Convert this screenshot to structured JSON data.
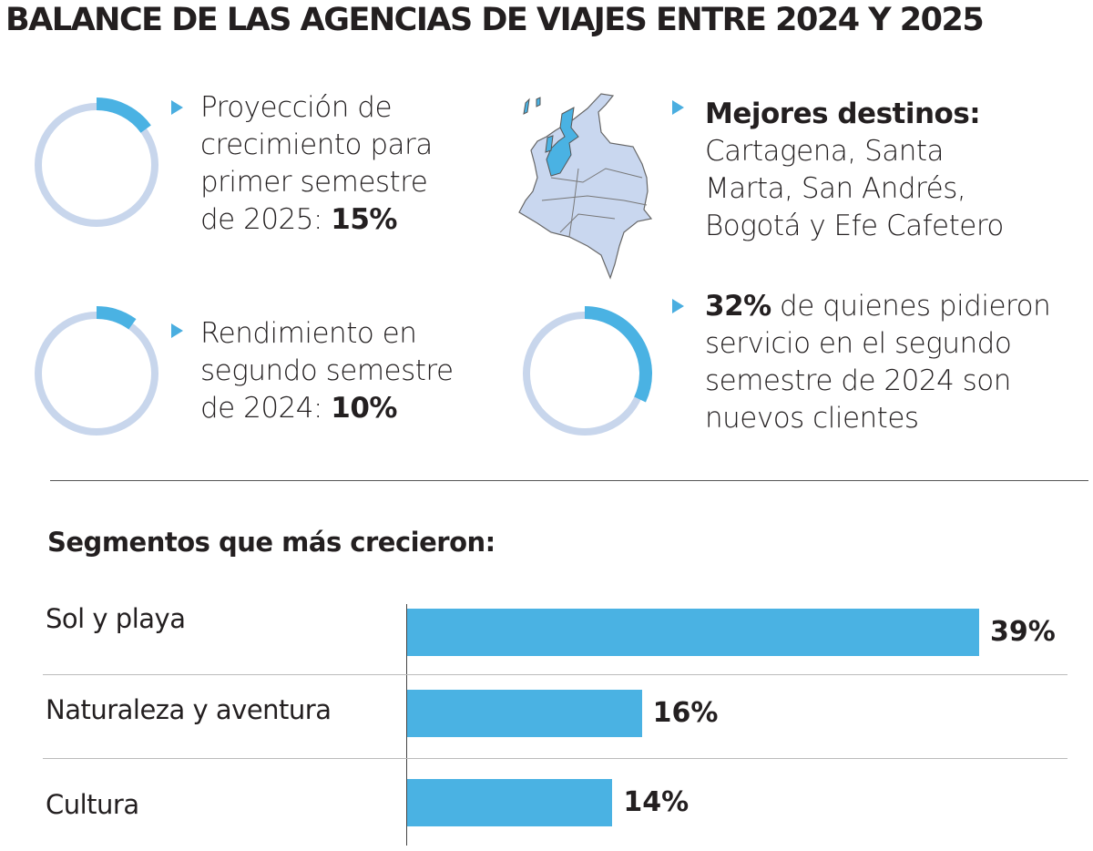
{
  "title": "BALANCE DE LAS AGENCIAS DE VIAJES ENTRE 2024 Y 2025",
  "colors": {
    "accent": "#4ab2e3",
    "ring": "#c8d6ec",
    "map_fill": "#c9d7ef"
  },
  "stats": [
    {
      "lines": [
        "Proyección de",
        "crecimiento para",
        "primer semestre",
        "de 2025: "
      ],
      "value_label": "15%",
      "value": 15
    },
    {
      "lines": [
        "Rendimiento en",
        "segundo semestre",
        "de 2024: "
      ],
      "value_label": "10%",
      "value": 10
    },
    {
      "bold": "Mejores destinos:",
      "lines": [
        "Cartagena, Santa",
        "Marta, San Andrés,",
        "Bogotá y Efe Cafetero"
      ],
      "icon": "colombia-map-icon"
    },
    {
      "value_label": "32%",
      "value": 32,
      "first_line_rest": " de quienes pidieron",
      "lines": [
        "servicio en el segundo",
        "semestre de 2024 son",
        "nuevos clientes"
      ]
    }
  ],
  "chart_data": {
    "type": "bar",
    "orientation": "horizontal",
    "title": "Segmentos que más crecieron:",
    "categories": [
      "Sol y playa",
      "Naturaleza y aventura",
      "Cultura"
    ],
    "values": [
      39,
      16,
      14
    ],
    "value_labels": [
      "39%",
      "16%",
      "14%"
    ]
  }
}
